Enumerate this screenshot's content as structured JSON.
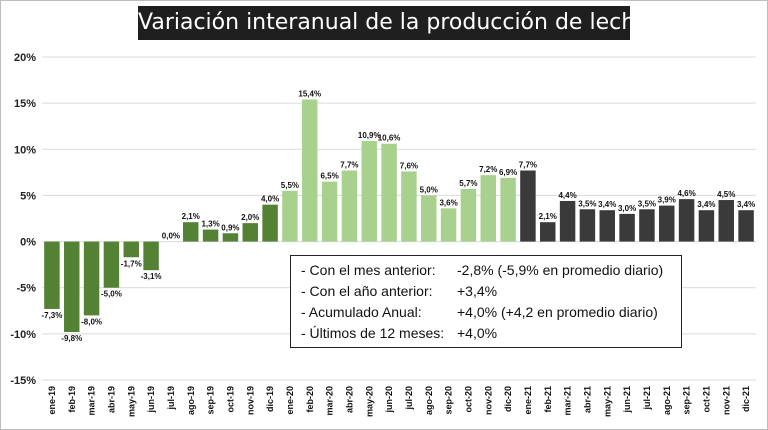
{
  "title": "Variación interanual de la producción de leche",
  "chart_data": {
    "type": "bar",
    "title": "Variación interanual de la producción de leche",
    "ylim": [
      -15,
      20
    ],
    "yticks": [
      "-15%",
      "-10%",
      "-5%",
      "0%",
      "5%",
      "10%",
      "15%",
      "20%"
    ],
    "grid": true,
    "categories": [
      "ene-19",
      "feb-19",
      "mar-19",
      "abr-19",
      "may-19",
      "jun-19",
      "jul-19",
      "ago-19",
      "sep-19",
      "oct-19",
      "nov-19",
      "dic-19",
      "ene-20",
      "feb-20",
      "mar-20",
      "abr-20",
      "may-20",
      "jun-20",
      "jul-20",
      "ago-20",
      "sep-20",
      "oct-20",
      "nov-20",
      "dic-20",
      "ene-21",
      "feb-21",
      "mar-21",
      "abr-21",
      "may-21",
      "jun-21",
      "jul-21",
      "ago-21",
      "sep-21",
      "oct-21",
      "nov-21",
      "dic-21"
    ],
    "values": [
      -7.3,
      -9.8,
      -8.0,
      -5.0,
      -1.7,
      -3.1,
      0.0,
      2.1,
      1.3,
      0.9,
      2.0,
      4.0,
      5.5,
      15.4,
      6.5,
      7.7,
      10.9,
      10.6,
      7.6,
      5.0,
      3.6,
      5.7,
      7.2,
      6.9,
      7.7,
      2.1,
      4.4,
      3.5,
      3.4,
      3.0,
      3.5,
      3.9,
      4.6,
      3.4,
      4.5,
      3.4
    ],
    "labels": [
      "-7,3%",
      "-9,8%",
      "-8,0%",
      "-5,0%",
      "-1,7%",
      "-3,1%",
      "0,0%",
      "2,1%",
      "1,3%",
      "0,9%",
      "2,0%",
      "4,0%",
      "5,5%",
      "15,4%",
      "6,5%",
      "7,7%",
      "10,9%",
      "10,6%",
      "7,6%",
      "5,0%",
      "3,6%",
      "5,7%",
      "7,2%",
      "6,9%",
      "7,7%",
      "2,1%",
      "4,4%",
      "3,5%",
      "3,4%",
      "3,0%",
      "3,5%",
      "3,9%",
      "4,6%",
      "3,4%",
      "4,5%",
      "3,4%"
    ],
    "year_colors": {
      "2019": "#548235",
      "2020": "#a9d18e",
      "2021": "#3a3a3a"
    }
  },
  "stats": [
    {
      "label": "- Con el mes anterior:",
      "value": "-2,8% (-5,9% en promedio diario)"
    },
    {
      "label": "- Con el año anterior:",
      "value": "+3,4%"
    },
    {
      "label": "- Acumulado Anual:",
      "value": "+4,0% (+4,2 en promedio diario)"
    },
    {
      "label": "- Últimos de 12 meses:",
      "value": "+4,0%"
    }
  ]
}
